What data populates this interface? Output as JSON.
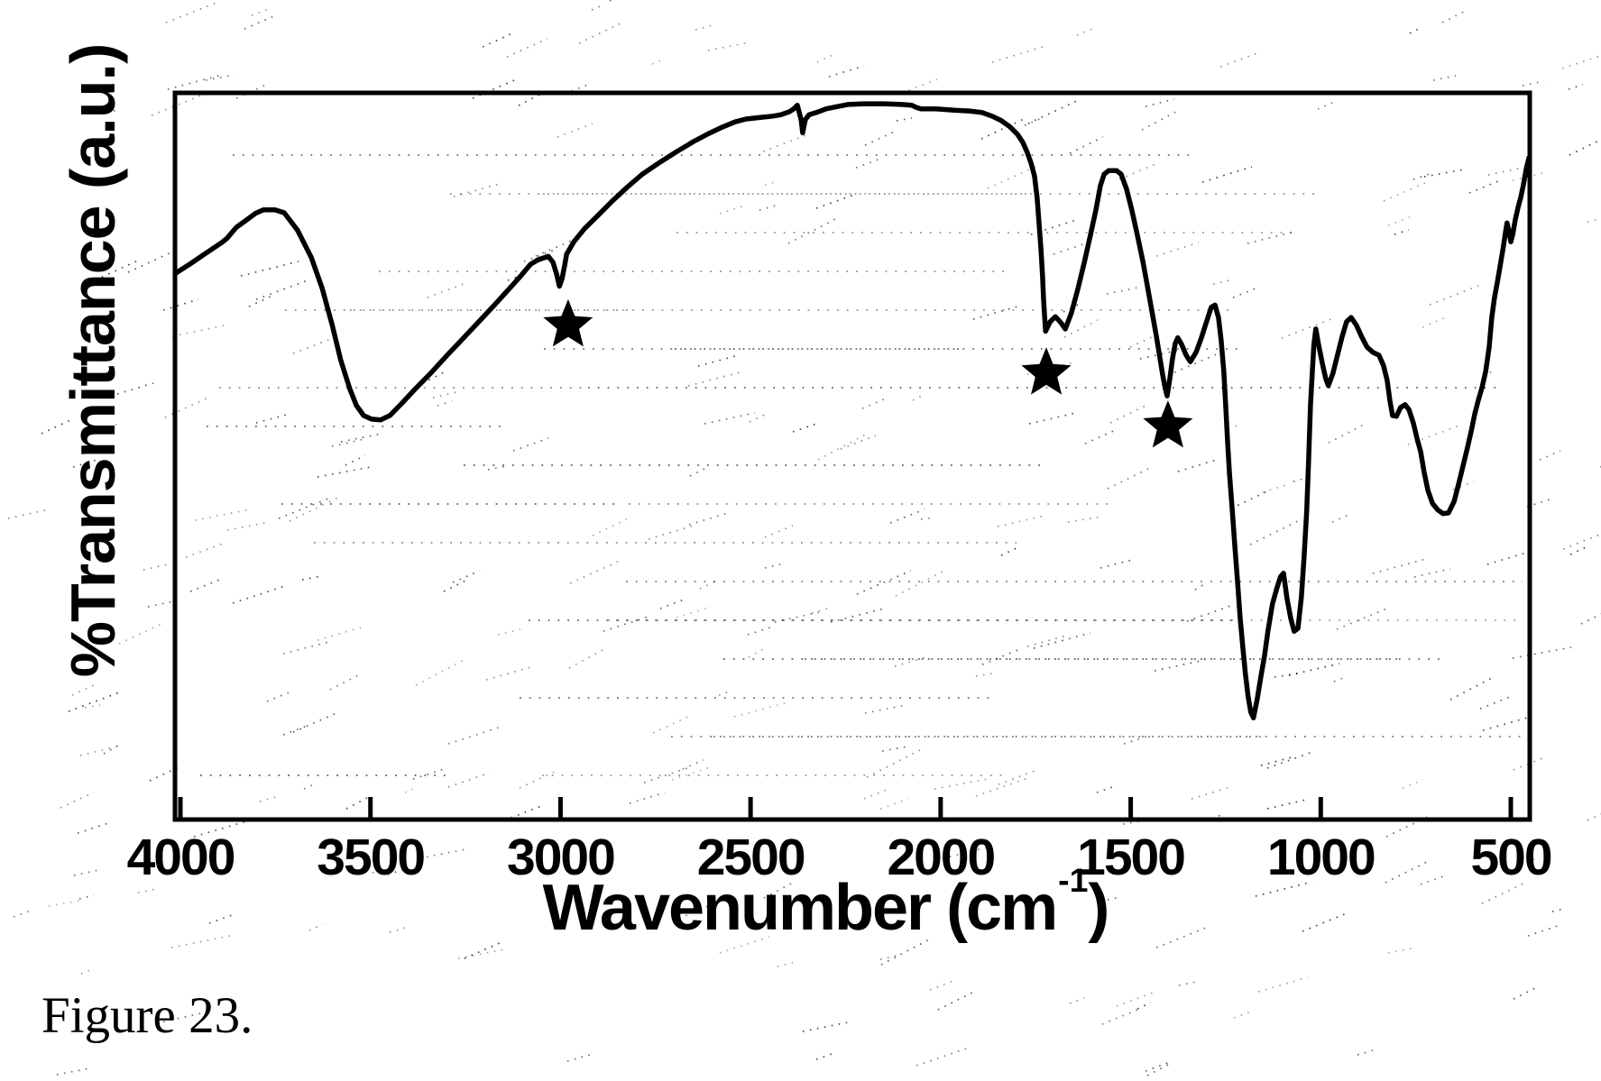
{
  "figure": {
    "caption": "Figure 23."
  },
  "chart_data": {
    "type": "line",
    "title": "",
    "ylabel": "%Transmittance (a.u.)",
    "xlabel_parts": {
      "main": "Wavenumber (cm",
      "sup": "-1",
      "close": ")"
    },
    "x_ticks": [
      4000,
      3500,
      3000,
      2500,
      2000,
      1500,
      1000,
      500
    ],
    "x_axis_reversed": true,
    "x_range": [
      4015,
      450
    ],
    "y_axis_units": "arbitrary (no ticks shown)",
    "grid": "faint dotted horizontal scan artifacts",
    "legend_position": "none",
    "line_color": "#000000",
    "background_color": "#ffffff",
    "markers": [
      {
        "symbol": "star",
        "wavenumber": 2980,
        "t": 68.0
      },
      {
        "symbol": "star",
        "wavenumber": 1722,
        "t": 61.4
      },
      {
        "symbol": "star",
        "wavenumber": 1402,
        "t": 54.1
      }
    ],
    "series": [
      {
        "name": "FTIR spectrum (%T vs wavenumber)",
        "points": [
          [
            4012,
            75.2
          ],
          [
            3976,
            76.4
          ],
          [
            3934,
            77.9
          ],
          [
            3891,
            79.4
          ],
          [
            3877,
            80.0
          ],
          [
            3853,
            81.5
          ],
          [
            3829,
            82.4
          ],
          [
            3803,
            83.4
          ],
          [
            3782,
            83.9
          ],
          [
            3751,
            83.9
          ],
          [
            3727,
            83.5
          ],
          [
            3692,
            81.1
          ],
          [
            3656,
            77.4
          ],
          [
            3627,
            73.1
          ],
          [
            3601,
            68.1
          ],
          [
            3578,
            63.2
          ],
          [
            3554,
            59.2
          ],
          [
            3537,
            57.0
          ],
          [
            3518,
            55.6
          ],
          [
            3497,
            55.1
          ],
          [
            3473,
            55.0
          ],
          [
            3449,
            55.6
          ],
          [
            3419,
            57.2
          ],
          [
            3383,
            59.2
          ],
          [
            3340,
            61.5
          ],
          [
            3300,
            63.8
          ],
          [
            3260,
            66.0
          ],
          [
            3217,
            68.4
          ],
          [
            3174,
            70.8
          ],
          [
            3134,
            73.1
          ],
          [
            3103,
            74.9
          ],
          [
            3079,
            76.4
          ],
          [
            3060,
            77.0
          ],
          [
            3044,
            77.3
          ],
          [
            3032,
            77.5
          ],
          [
            3020,
            76.7
          ],
          [
            3011,
            75.2
          ],
          [
            3003,
            73.4
          ],
          [
            2996,
            74.4
          ],
          [
            2989,
            76.3
          ],
          [
            2984,
            77.8
          ],
          [
            2965,
            79.5
          ],
          [
            2937,
            81.3
          ],
          [
            2904,
            83.0
          ],
          [
            2866,
            85.0
          ],
          [
            2825,
            87.0
          ],
          [
            2785,
            88.8
          ],
          [
            2740,
            90.4
          ],
          [
            2695,
            91.9
          ],
          [
            2650,
            93.3
          ],
          [
            2610,
            94.4
          ],
          [
            2574,
            95.3
          ],
          [
            2541,
            96.0
          ],
          [
            2512,
            96.4
          ],
          [
            2477,
            96.6
          ],
          [
            2441,
            96.8
          ],
          [
            2420,
            97.0
          ],
          [
            2398,
            97.4
          ],
          [
            2386,
            97.8
          ],
          [
            2377,
            98.3
          ],
          [
            2372,
            97.3
          ],
          [
            2367,
            96.3
          ],
          [
            2363,
            94.5
          ],
          [
            2356,
            96.3
          ],
          [
            2346,
            97.0
          ],
          [
            2327,
            97.3
          ],
          [
            2301,
            97.8
          ],
          [
            2273,
            98.1
          ],
          [
            2244,
            98.4
          ],
          [
            2201,
            98.5
          ],
          [
            2149,
            98.5
          ],
          [
            2102,
            98.4
          ],
          [
            2076,
            98.3
          ],
          [
            2064,
            98.0
          ],
          [
            2052,
            97.8
          ],
          [
            2012,
            97.8
          ],
          [
            1964,
            97.6
          ],
          [
            1924,
            97.5
          ],
          [
            1891,
            97.3
          ],
          [
            1865,
            96.8
          ],
          [
            1841,
            96.2
          ],
          [
            1817,
            95.3
          ],
          [
            1798,
            94.3
          ],
          [
            1784,
            93.2
          ],
          [
            1772,
            91.8
          ],
          [
            1762,
            90.3
          ],
          [
            1753,
            88.5
          ],
          [
            1746,
            85.5
          ],
          [
            1741,
            82.0
          ],
          [
            1736,
            78.5
          ],
          [
            1732,
            74.9
          ],
          [
            1729,
            71.3
          ],
          [
            1724,
            67.2
          ],
          [
            1712,
            68.5
          ],
          [
            1698,
            69.2
          ],
          [
            1684,
            68.4
          ],
          [
            1672,
            67.5
          ],
          [
            1656,
            69.7
          ],
          [
            1639,
            73.0
          ],
          [
            1622,
            76.7
          ],
          [
            1606,
            80.4
          ],
          [
            1591,
            84.0
          ],
          [
            1580,
            87.2
          ],
          [
            1570,
            88.8
          ],
          [
            1558,
            89.3
          ],
          [
            1537,
            89.3
          ],
          [
            1525,
            88.8
          ],
          [
            1511,
            86.8
          ],
          [
            1497,
            83.9
          ],
          [
            1482,
            80.3
          ],
          [
            1468,
            76.8
          ],
          [
            1456,
            73.4
          ],
          [
            1444,
            69.9
          ],
          [
            1432,
            66.4
          ],
          [
            1423,
            63.5
          ],
          [
            1416,
            61.2
          ],
          [
            1409,
            59.3
          ],
          [
            1404,
            58.3
          ],
          [
            1397,
            60.7
          ],
          [
            1390,
            63.4
          ],
          [
            1383,
            65.5
          ],
          [
            1376,
            66.3
          ],
          [
            1366,
            65.4
          ],
          [
            1354,
            63.9
          ],
          [
            1343,
            63.0
          ],
          [
            1328,
            64.3
          ],
          [
            1314,
            66.3
          ],
          [
            1300,
            68.6
          ],
          [
            1288,
            70.5
          ],
          [
            1278,
            70.8
          ],
          [
            1269,
            69.1
          ],
          [
            1262,
            65.9
          ],
          [
            1255,
            61.7
          ],
          [
            1250,
            57.0
          ],
          [
            1245,
            52.0
          ],
          [
            1240,
            47.6
          ],
          [
            1233,
            42.7
          ],
          [
            1226,
            37.7
          ],
          [
            1219,
            32.8
          ],
          [
            1212,
            27.8
          ],
          [
            1205,
            23.7
          ],
          [
            1198,
            20.0
          ],
          [
            1191,
            16.9
          ],
          [
            1184,
            14.8
          ],
          [
            1177,
            14.0
          ],
          [
            1167,
            16.6
          ],
          [
            1158,
            19.5
          ],
          [
            1148,
            22.5
          ],
          [
            1139,
            25.9
          ],
          [
            1127,
            29.7
          ],
          [
            1115,
            31.9
          ],
          [
            1106,
            33.4
          ],
          [
            1098,
            33.9
          ],
          [
            1089,
            30.5
          ],
          [
            1079,
            27.7
          ],
          [
            1070,
            25.9
          ],
          [
            1060,
            26.3
          ],
          [
            1051,
            30.6
          ],
          [
            1044,
            35.9
          ],
          [
            1037,
            42.4
          ],
          [
            1032,
            49.3
          ],
          [
            1027,
            57.0
          ],
          [
            1022,
            61.7
          ],
          [
            1018,
            65.4
          ],
          [
            1013,
            67.5
          ],
          [
            1006,
            65.4
          ],
          [
            996,
            62.8
          ],
          [
            987,
            60.7
          ],
          [
            980,
            59.7
          ],
          [
            968,
            61.4
          ],
          [
            956,
            63.9
          ],
          [
            944,
            66.4
          ],
          [
            932,
            68.5
          ],
          [
            920,
            69.1
          ],
          [
            906,
            68.0
          ],
          [
            892,
            66.4
          ],
          [
            878,
            65.0
          ],
          [
            863,
            64.3
          ],
          [
            847,
            63.9
          ],
          [
            835,
            62.5
          ],
          [
            825,
            60.4
          ],
          [
            818,
            57.6
          ],
          [
            811,
            55.6
          ],
          [
            801,
            55.5
          ],
          [
            790,
            56.7
          ],
          [
            778,
            57.1
          ],
          [
            768,
            56.4
          ],
          [
            756,
            54.5
          ],
          [
            747,
            52.5
          ],
          [
            737,
            50.6
          ],
          [
            728,
            47.8
          ],
          [
            718,
            45.3
          ],
          [
            706,
            43.5
          ],
          [
            692,
            42.6
          ],
          [
            678,
            42.1
          ],
          [
            664,
            42.2
          ],
          [
            649,
            43.8
          ],
          [
            638,
            46.0
          ],
          [
            626,
            48.6
          ],
          [
            614,
            51.2
          ],
          [
            604,
            53.5
          ],
          [
            595,
            55.8
          ],
          [
            585,
            57.8
          ],
          [
            576,
            59.4
          ],
          [
            566,
            61.7
          ],
          [
            557,
            65.0
          ],
          [
            550,
            69.1
          ],
          [
            543,
            71.8
          ],
          [
            535,
            74.1
          ],
          [
            528,
            76.2
          ],
          [
            521,
            78.4
          ],
          [
            514,
            80.8
          ],
          [
            510,
            82.1
          ],
          [
            505,
            81.0
          ],
          [
            500,
            79.5
          ],
          [
            495,
            80.5
          ],
          [
            488,
            82.6
          ],
          [
            481,
            84.2
          ],
          [
            474,
            85.6
          ],
          [
            467,
            87.3
          ],
          [
            460,
            89.4
          ],
          [
            453,
            90.9
          ]
        ]
      }
    ]
  }
}
